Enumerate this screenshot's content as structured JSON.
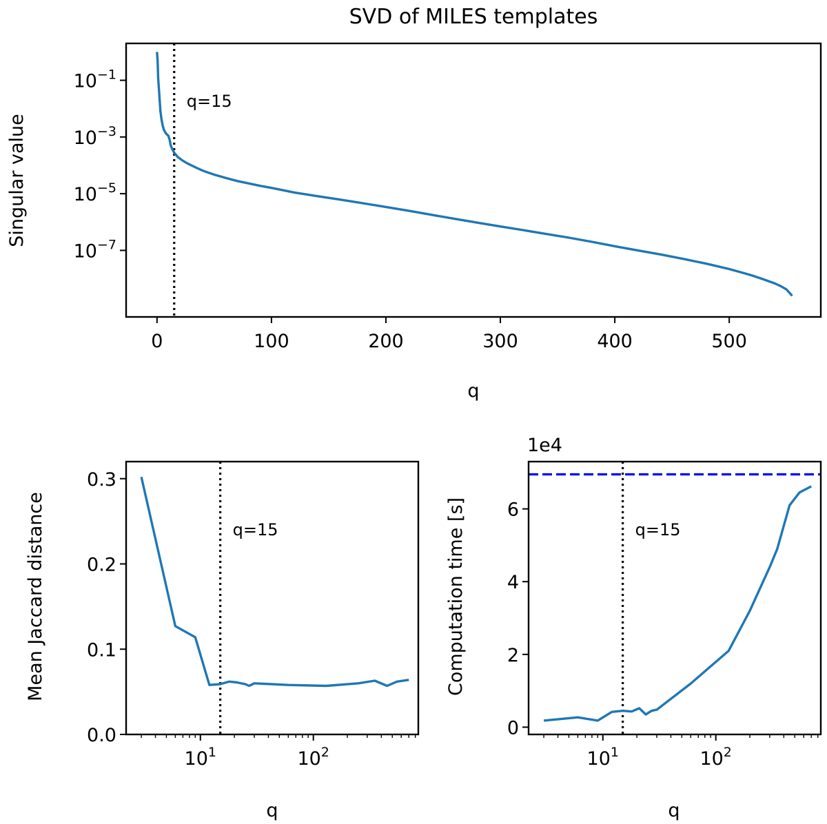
{
  "colors": {
    "series": "#1f77b4",
    "reference": "#0000ff",
    "axis": "#000000"
  },
  "chart_data": [
    {
      "type": "line",
      "title": "SVD of MILES templates",
      "xlabel": "q",
      "ylabel": "Singular value",
      "xscale": "linear",
      "yscale": "log",
      "xlim": [
        -27,
        580
      ],
      "ylim": [
        4.5e-10,
        2.0
      ],
      "xticks": [
        0,
        100,
        200,
        300,
        400,
        500
      ],
      "xtick_labels": [
        "0",
        "100",
        "200",
        "300",
        "400",
        "500"
      ],
      "yticks": [
        0.1,
        0.001,
        1e-05,
        1e-07
      ],
      "ytick_labels": [
        {
          "base": "10",
          "exp": "−1"
        },
        {
          "base": "10",
          "exp": "−3"
        },
        {
          "base": "10",
          "exp": "−5"
        },
        {
          "base": "10",
          "exp": "−7"
        }
      ],
      "grid": false,
      "series": [
        {
          "x": [
            0,
            0.5,
            1,
            2,
            3,
            4,
            5,
            6,
            7,
            8,
            9,
            10,
            11,
            12,
            13,
            15,
            18,
            22,
            26,
            30,
            35,
            40,
            45,
            50,
            60,
            70,
            80,
            90,
            100,
            120,
            140,
            160,
            180,
            200,
            220,
            240,
            260,
            280,
            300,
            320,
            340,
            360,
            380,
            400,
            420,
            440,
            460,
            480,
            500,
            510,
            520,
            530,
            540,
            545,
            550,
            555
          ],
          "y": [
            1.0,
            0.5,
            0.12,
            0.03,
            0.008,
            0.004,
            0.0025,
            0.0018,
            0.0015,
            0.0013,
            0.0012,
            0.0011,
            0.0008,
            0.0005,
            0.0004,
            0.00028,
            0.0002,
            0.00015,
            0.00012,
            0.0001,
            8e-05,
            6.5e-05,
            5.5e-05,
            4.7e-05,
            3.6e-05,
            2.8e-05,
            2.3e-05,
            1.9e-05,
            1.6e-05,
            1.1e-05,
            8.2e-06,
            6.2e-06,
            4.6e-06,
            3.4e-06,
            2.5e-06,
            1.8e-06,
            1.3e-06,
            9.5e-07,
            7e-07,
            5.2e-07,
            3.8e-07,
            2.8e-07,
            2e-07,
            1.4e-07,
            1e-07,
            7.2e-08,
            5e-08,
            3.4e-08,
            2.2e-08,
            1.7e-08,
            1.3e-08,
            9.5e-09,
            6.8e-09,
            5.5e-09,
            4.2e-09,
            2.5e-09
          ]
        }
      ],
      "vline": {
        "x": 15,
        "label": "q=15"
      }
    },
    {
      "type": "line",
      "title": "",
      "xlabel": "q",
      "ylabel": "Mean Jaccard distance",
      "xscale": "log",
      "yscale": "linear",
      "xlim": [
        2.2,
        850
      ],
      "ylim": [
        0.0,
        0.32
      ],
      "xticks": [
        10,
        100
      ],
      "xtick_labels": [
        {
          "base": "10",
          "exp": "1"
        },
        {
          "base": "10",
          "exp": "2"
        }
      ],
      "yticks": [
        0.0,
        0.1,
        0.2,
        0.3
      ],
      "ytick_labels": [
        "0.0",
        "0.1",
        "0.2",
        "0.3"
      ],
      "grid": false,
      "series": [
        {
          "x": [
            3,
            6,
            9,
            12,
            15,
            18,
            21,
            25,
            27,
            30,
            60,
            130,
            250,
            350,
            450,
            550,
            700
          ],
          "y": [
            0.302,
            0.127,
            0.114,
            0.058,
            0.059,
            0.062,
            0.061,
            0.059,
            0.057,
            0.06,
            0.058,
            0.057,
            0.06,
            0.063,
            0.057,
            0.062,
            0.064
          ]
        }
      ],
      "vline": {
        "x": 15,
        "label": "q=15"
      }
    },
    {
      "type": "line",
      "title": "",
      "xlabel": "q",
      "ylabel": "Computation time [s]",
      "multiplier_label": "1e4",
      "xscale": "log",
      "yscale": "linear",
      "xlim": [
        2.2,
        850
      ],
      "ylim": [
        -0.2,
        7.3
      ],
      "xticks": [
        10,
        100
      ],
      "xtick_labels": [
        {
          "base": "10",
          "exp": "1"
        },
        {
          "base": "10",
          "exp": "2"
        }
      ],
      "yticks": [
        0,
        2,
        4,
        6
      ],
      "ytick_labels": [
        "0",
        "2",
        "4",
        "6"
      ],
      "grid": false,
      "series": [
        {
          "x": [
            3,
            6,
            9,
            12,
            15,
            18,
            21,
            24,
            27,
            30,
            60,
            130,
            200,
            300,
            350,
            450,
            550,
            700
          ],
          "y": [
            0.18,
            0.27,
            0.18,
            0.42,
            0.45,
            0.43,
            0.52,
            0.35,
            0.45,
            0.48,
            1.2,
            2.1,
            3.2,
            4.4,
            4.9,
            6.1,
            6.45,
            6.62
          ]
        }
      ],
      "hline": {
        "y": 6.95
      },
      "vline": {
        "x": 15,
        "label": "q=15"
      }
    }
  ]
}
